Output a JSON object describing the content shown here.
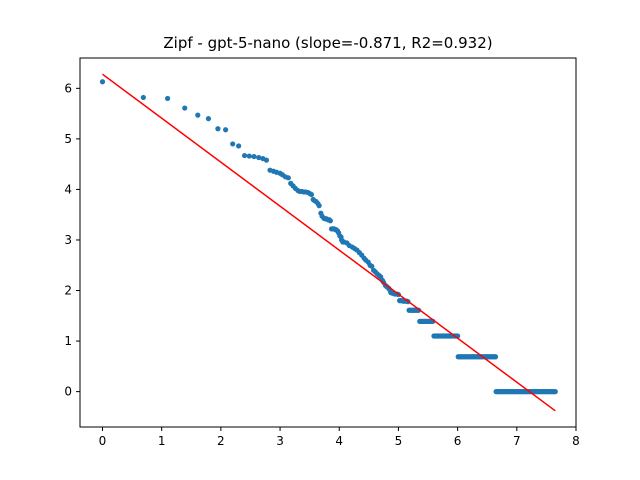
{
  "chart_data": {
    "type": "scatter",
    "title": "Zipf - gpt-5-nano (slope=-0.871, R2=0.932)",
    "xlabel": "",
    "ylabel": "",
    "xlim": [
      -0.38,
      8.0
    ],
    "ylim": [
      -0.7,
      6.6
    ],
    "xticks": [
      0,
      1,
      2,
      3,
      4,
      5,
      6,
      7,
      8
    ],
    "yticks": [
      0,
      1,
      2,
      3,
      4,
      5,
      6
    ],
    "grid": false,
    "legend": "none",
    "colors": {
      "points": "#1f77b4",
      "fit_line": "#ff0000",
      "axes": "#000000"
    },
    "fit_line": {
      "slope": -0.871,
      "r2": 0.932,
      "x": [
        0,
        7.65
      ],
      "y": [
        6.28,
        -0.38
      ]
    },
    "points": [
      [
        0.0,
        6.13
      ],
      [
        0.69,
        5.82
      ],
      [
        1.1,
        5.8
      ],
      [
        1.39,
        5.61
      ],
      [
        1.61,
        5.47
      ],
      [
        1.79,
        5.4
      ],
      [
        1.95,
        5.2
      ],
      [
        2.08,
        5.18
      ],
      [
        2.2,
        4.9
      ],
      [
        2.3,
        4.86
      ],
      [
        2.4,
        4.67
      ],
      [
        2.48,
        4.66
      ],
      [
        2.56,
        4.65
      ],
      [
        2.64,
        4.63
      ],
      [
        2.71,
        4.61
      ],
      [
        2.77,
        4.58
      ],
      [
        2.83,
        4.38
      ],
      [
        2.89,
        4.36
      ],
      [
        2.94,
        4.34
      ],
      [
        3.0,
        4.32
      ],
      [
        3.04,
        4.29
      ],
      [
        3.09,
        4.25
      ],
      [
        3.14,
        4.23
      ],
      [
        3.18,
        4.12
      ],
      [
        3.22,
        4.07
      ],
      [
        3.26,
        4.02
      ],
      [
        3.3,
        3.98
      ],
      [
        3.33,
        3.96
      ],
      [
        3.37,
        3.96
      ],
      [
        3.4,
        3.95
      ],
      [
        3.43,
        3.95
      ],
      [
        3.47,
        3.94
      ],
      [
        3.5,
        3.92
      ],
      [
        3.53,
        3.9
      ],
      [
        3.56,
        3.8
      ],
      [
        3.58,
        3.78
      ],
      [
        3.61,
        3.76
      ],
      [
        3.64,
        3.72
      ],
      [
        3.66,
        3.68
      ],
      [
        3.69,
        3.53
      ],
      [
        3.71,
        3.47
      ],
      [
        3.74,
        3.43
      ],
      [
        3.76,
        3.42
      ],
      [
        3.78,
        3.42
      ],
      [
        3.81,
        3.4
      ],
      [
        3.83,
        3.4
      ],
      [
        3.85,
        3.38
      ],
      [
        3.87,
        3.22
      ],
      [
        3.89,
        3.22
      ],
      [
        3.91,
        3.22
      ],
      [
        3.93,
        3.21
      ],
      [
        3.95,
        3.2
      ],
      [
        3.97,
        3.18
      ],
      [
        3.99,
        3.14
      ],
      [
        4.01,
        3.08
      ],
      [
        4.03,
        3.06
      ],
      [
        4.04,
        3.0
      ],
      [
        4.06,
        2.96
      ],
      [
        4.08,
        2.96
      ],
      [
        4.13,
        2.94
      ],
      [
        4.17,
        2.89
      ],
      [
        4.22,
        2.86
      ],
      [
        4.26,
        2.83
      ],
      [
        4.3,
        2.8
      ],
      [
        4.34,
        2.75
      ],
      [
        4.38,
        2.7
      ],
      [
        4.42,
        2.64
      ],
      [
        4.45,
        2.6
      ],
      [
        4.49,
        2.56
      ],
      [
        4.52,
        2.5
      ],
      [
        4.55,
        2.48
      ],
      [
        4.58,
        2.4
      ],
      [
        4.61,
        2.37
      ],
      [
        4.64,
        2.33
      ],
      [
        4.67,
        2.3
      ],
      [
        4.7,
        2.27
      ],
      [
        4.73,
        2.2
      ],
      [
        4.75,
        2.16
      ],
      [
        4.78,
        2.1
      ],
      [
        4.8,
        2.08
      ],
      [
        4.83,
        2.05
      ],
      [
        4.85,
        2.02
      ],
      [
        4.87,
        1.96
      ],
      [
        4.89,
        1.95
      ],
      [
        4.92,
        1.94
      ],
      [
        4.94,
        1.93
      ],
      [
        4.96,
        1.93
      ],
      [
        4.98,
        1.93
      ],
      [
        5.0,
        1.92
      ],
      [
        5.02,
        1.8
      ],
      [
        5.04,
        1.8
      ],
      [
        5.06,
        1.8
      ],
      [
        5.08,
        1.79
      ],
      [
        5.1,
        1.79
      ],
      [
        5.12,
        1.79
      ],
      [
        5.14,
        1.79
      ],
      [
        5.16,
        1.78
      ],
      [
        5.18,
        1.61
      ],
      [
        5.2,
        1.61
      ],
      [
        5.22,
        1.61
      ],
      [
        5.24,
        1.61
      ],
      [
        5.26,
        1.61
      ],
      [
        5.28,
        1.61
      ],
      [
        5.3,
        1.61
      ],
      [
        5.32,
        1.61
      ],
      [
        5.34,
        1.61
      ],
      [
        5.36,
        1.39
      ],
      [
        5.38,
        1.39
      ],
      [
        5.4,
        1.39
      ],
      [
        5.42,
        1.39
      ],
      [
        5.44,
        1.39
      ],
      [
        5.46,
        1.39
      ],
      [
        5.48,
        1.39
      ],
      [
        5.5,
        1.39
      ],
      [
        5.52,
        1.39
      ],
      [
        5.54,
        1.39
      ],
      [
        5.56,
        1.39
      ],
      [
        5.58,
        1.39
      ],
      [
        5.6,
        1.1
      ],
      [
        5.62,
        1.1
      ],
      [
        5.64,
        1.1
      ],
      [
        5.66,
        1.1
      ],
      [
        5.68,
        1.1
      ],
      [
        5.7,
        1.1
      ],
      [
        5.72,
        1.1
      ],
      [
        5.74,
        1.1
      ],
      [
        5.76,
        1.1
      ],
      [
        5.78,
        1.1
      ],
      [
        5.8,
        1.1
      ],
      [
        5.82,
        1.1
      ],
      [
        5.84,
        1.1
      ],
      [
        5.86,
        1.1
      ],
      [
        5.88,
        1.1
      ],
      [
        5.9,
        1.1
      ],
      [
        5.92,
        1.1
      ],
      [
        5.94,
        1.1
      ],
      [
        5.96,
        1.1
      ],
      [
        5.98,
        1.1
      ],
      [
        6.0,
        1.1
      ],
      [
        6.01,
        0.69
      ],
      [
        6.03,
        0.69
      ],
      [
        6.05,
        0.69
      ],
      [
        6.07,
        0.69
      ],
      [
        6.09,
        0.69
      ],
      [
        6.11,
        0.69
      ],
      [
        6.13,
        0.69
      ],
      [
        6.15,
        0.69
      ],
      [
        6.17,
        0.69
      ],
      [
        6.19,
        0.69
      ],
      [
        6.21,
        0.69
      ],
      [
        6.23,
        0.69
      ],
      [
        6.25,
        0.69
      ],
      [
        6.27,
        0.69
      ],
      [
        6.29,
        0.69
      ],
      [
        6.31,
        0.69
      ],
      [
        6.33,
        0.69
      ],
      [
        6.35,
        0.69
      ],
      [
        6.37,
        0.69
      ],
      [
        6.39,
        0.69
      ],
      [
        6.41,
        0.69
      ],
      [
        6.43,
        0.69
      ],
      [
        6.45,
        0.69
      ],
      [
        6.47,
        0.69
      ],
      [
        6.49,
        0.69
      ],
      [
        6.51,
        0.69
      ],
      [
        6.53,
        0.69
      ],
      [
        6.55,
        0.69
      ],
      [
        6.57,
        0.69
      ],
      [
        6.59,
        0.69
      ],
      [
        6.61,
        0.69
      ],
      [
        6.63,
        0.69
      ],
      [
        6.64,
        0.69
      ],
      [
        6.65,
        0.0
      ],
      [
        6.67,
        0.0
      ],
      [
        6.69,
        0.0
      ],
      [
        6.71,
        0.0
      ],
      [
        6.73,
        0.0
      ],
      [
        6.75,
        0.0
      ],
      [
        6.77,
        0.0
      ],
      [
        6.79,
        0.0
      ],
      [
        6.81,
        0.0
      ],
      [
        6.83,
        0.0
      ],
      [
        6.85,
        0.0
      ],
      [
        6.87,
        0.0
      ],
      [
        6.89,
        0.0
      ],
      [
        6.91,
        0.0
      ],
      [
        6.93,
        0.0
      ],
      [
        6.95,
        0.0
      ],
      [
        6.97,
        0.0
      ],
      [
        6.99,
        0.0
      ],
      [
        7.01,
        0.0
      ],
      [
        7.03,
        0.0
      ],
      [
        7.05,
        0.0
      ],
      [
        7.07,
        0.0
      ],
      [
        7.09,
        0.0
      ],
      [
        7.11,
        0.0
      ],
      [
        7.13,
        0.0
      ],
      [
        7.15,
        0.0
      ],
      [
        7.17,
        0.0
      ],
      [
        7.19,
        0.0
      ],
      [
        7.21,
        0.0
      ],
      [
        7.23,
        0.0
      ],
      [
        7.25,
        0.0
      ],
      [
        7.27,
        0.0
      ],
      [
        7.29,
        0.0
      ],
      [
        7.31,
        0.0
      ],
      [
        7.33,
        0.0
      ],
      [
        7.35,
        0.0
      ],
      [
        7.37,
        0.0
      ],
      [
        7.39,
        0.0
      ],
      [
        7.41,
        0.0
      ],
      [
        7.43,
        0.0
      ],
      [
        7.45,
        0.0
      ],
      [
        7.47,
        0.0
      ],
      [
        7.49,
        0.0
      ],
      [
        7.51,
        0.0
      ],
      [
        7.53,
        0.0
      ],
      [
        7.55,
        0.0
      ],
      [
        7.57,
        0.0
      ],
      [
        7.59,
        0.0
      ],
      [
        7.61,
        0.0
      ],
      [
        7.63,
        0.0
      ],
      [
        7.65,
        0.0
      ]
    ]
  }
}
